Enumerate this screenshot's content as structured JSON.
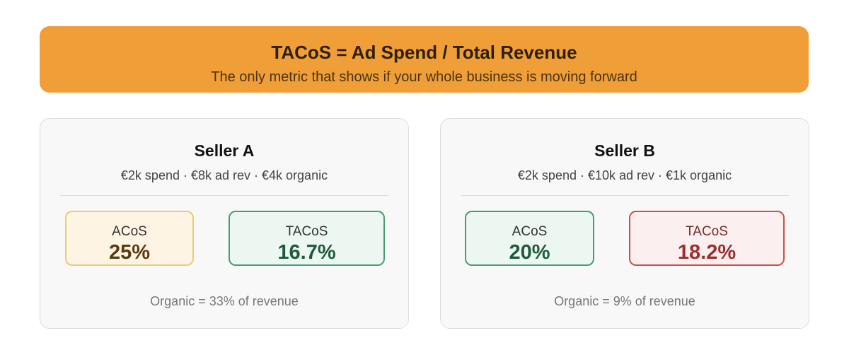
{
  "header": {
    "title": "TACoS = Ad Spend / Total Revenue",
    "subtitle": "The only metric that shows if your whole business is moving forward"
  },
  "cards": [
    {
      "title": "Seller A",
      "details": "€2k spend · €8k ad rev · €4k organic",
      "metrics": [
        {
          "label": "ACoS",
          "value": "25%"
        },
        {
          "label": "TACoS",
          "value": "16.7%"
        }
      ],
      "note": "Organic = 33% of revenue"
    },
    {
      "title": "Seller B",
      "details": "€2k spend · €10k ad rev · €1k organic",
      "metrics": [
        {
          "label": "ACoS",
          "value": "20%"
        },
        {
          "label": "TACoS",
          "value": "18.2%"
        }
      ],
      "note": "Organic = 9% of revenue"
    }
  ]
}
